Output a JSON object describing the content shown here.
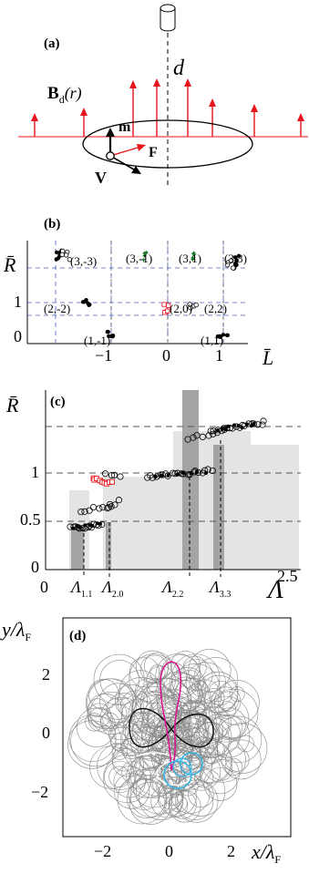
{
  "panel_a": {
    "label": "(a)",
    "field_symbol": "B",
    "field_sub": "d",
    "field_arg": "(r)",
    "distance": "d",
    "m": "m",
    "F": "F",
    "V": "V"
  },
  "panel_b": {
    "label": "(b)",
    "ylabel": "R̄",
    "xlabel": "L̄",
    "yticks": [
      "0",
      "1"
    ],
    "xticks": [
      "−1",
      "0",
      "1"
    ],
    "state_labels": [
      "(3,-3)",
      "(3,-1)",
      "(3,1)",
      "(3,3)",
      "(2,-2)",
      "(2,0)",
      "(2,2)",
      "(1,-1)",
      "(1,1)"
    ]
  },
  "panel_c": {
    "label": "(c)",
    "ylabel": "R̄",
    "xlabel": "Λ",
    "yticks": [
      "0",
      "0.5",
      "1"
    ],
    "xticks": [
      "0",
      "2.5"
    ],
    "lambda_labels": [
      {
        "main": "Λ",
        "sub": "1.1"
      },
      {
        "main": "Λ",
        "sub": "2.0"
      },
      {
        "main": "Λ",
        "sub": "2.2"
      },
      {
        "main": "Λ",
        "sub": "3.3"
      }
    ]
  },
  "panel_d": {
    "label": "(d)",
    "ylabel_main": "y/λ",
    "ylabel_sub": "F",
    "xlabel_main": "x/λ",
    "xlabel_sub": "F",
    "yticks": [
      "2",
      "0",
      "−2"
    ],
    "xticks": [
      "−2",
      "0",
      "2"
    ]
  },
  "colors": {
    "field_arrow": "#e8141b",
    "ring_red": "#e8141b",
    "ring_green": "#1a7a2a",
    "dash_blue": "#4a5fc8",
    "shade_light": "#e4e4e4",
    "shade_dark": "#a4a4a4",
    "traj_gray": "#8a8a8a",
    "traj_magenta": "#d6178f",
    "traj_cyan": "#35b6e4"
  }
}
